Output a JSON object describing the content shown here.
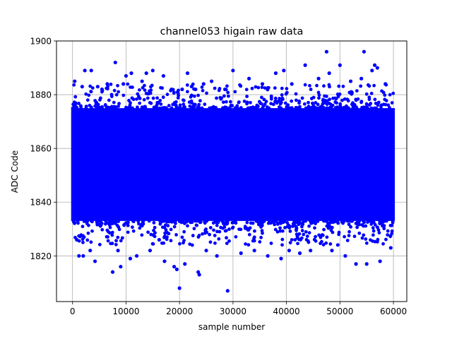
{
  "chart_data": {
    "type": "scatter",
    "title": "channel053 higain raw data",
    "xlabel": "sample number",
    "ylabel": "ADC Code",
    "xlim": [
      -3000,
      62500
    ],
    "ylim": [
      1803,
      1900
    ],
    "x_ticks": [
      0,
      10000,
      20000,
      30000,
      40000,
      50000,
      60000
    ],
    "x_tick_labels": [
      "0",
      "10000",
      "20000",
      "30000",
      "40000",
      "50000",
      "60000"
    ],
    "y_ticks": [
      1820,
      1840,
      1860,
      1880,
      1900
    ],
    "y_tick_labels": [
      "1820",
      "1840",
      "1860",
      "1880",
      "1900"
    ],
    "grid": true,
    "marker_color": "#0000ff",
    "dense_band": {
      "x_range": [
        0,
        60000
      ],
      "y_range": [
        1833,
        1875
      ]
    },
    "outliers": [
      {
        "x": 400,
        "y": 1885
      },
      {
        "x": 800,
        "y": 1826
      },
      {
        "x": 1200,
        "y": 1820
      },
      {
        "x": 1800,
        "y": 1883
      },
      {
        "x": 2000,
        "y": 1820
      },
      {
        "x": 2300,
        "y": 1889
      },
      {
        "x": 3300,
        "y": 1822
      },
      {
        "x": 3500,
        "y": 1889
      },
      {
        "x": 4200,
        "y": 1818
      },
      {
        "x": 4700,
        "y": 1883
      },
      {
        "x": 5500,
        "y": 1882
      },
      {
        "x": 6500,
        "y": 1884
      },
      {
        "x": 7500,
        "y": 1814
      },
      {
        "x": 8000,
        "y": 1892
      },
      {
        "x": 8500,
        "y": 1822
      },
      {
        "x": 9000,
        "y": 1816
      },
      {
        "x": 9500,
        "y": 1884
      },
      {
        "x": 10000,
        "y": 1887
      },
      {
        "x": 10800,
        "y": 1819
      },
      {
        "x": 11000,
        "y": 1888
      },
      {
        "x": 12000,
        "y": 1820
      },
      {
        "x": 13000,
        "y": 1885
      },
      {
        "x": 13800,
        "y": 1888
      },
      {
        "x": 14500,
        "y": 1822
      },
      {
        "x": 15000,
        "y": 1889
      },
      {
        "x": 16200,
        "y": 1826
      },
      {
        "x": 17000,
        "y": 1887
      },
      {
        "x": 17200,
        "y": 1818
      },
      {
        "x": 18500,
        "y": 1882
      },
      {
        "x": 19000,
        "y": 1816
      },
      {
        "x": 19500,
        "y": 1815
      },
      {
        "x": 20000,
        "y": 1808
      },
      {
        "x": 20500,
        "y": 1882
      },
      {
        "x": 21000,
        "y": 1817
      },
      {
        "x": 21500,
        "y": 1888
      },
      {
        "x": 23000,
        "y": 1882
      },
      {
        "x": 23500,
        "y": 1814
      },
      {
        "x": 23700,
        "y": 1813
      },
      {
        "x": 24500,
        "y": 1884
      },
      {
        "x": 25000,
        "y": 1822
      },
      {
        "x": 26000,
        "y": 1885
      },
      {
        "x": 27000,
        "y": 1820
      },
      {
        "x": 28500,
        "y": 1882
      },
      {
        "x": 29000,
        "y": 1807
      },
      {
        "x": 30000,
        "y": 1889
      },
      {
        "x": 31500,
        "y": 1821
      },
      {
        "x": 33000,
        "y": 1886
      },
      {
        "x": 34000,
        "y": 1822
      },
      {
        "x": 35500,
        "y": 1884
      },
      {
        "x": 36500,
        "y": 1820
      },
      {
        "x": 38000,
        "y": 1888
      },
      {
        "x": 39000,
        "y": 1819
      },
      {
        "x": 39500,
        "y": 1889
      },
      {
        "x": 40500,
        "y": 1822
      },
      {
        "x": 41000,
        "y": 1884
      },
      {
        "x": 42500,
        "y": 1821
      },
      {
        "x": 43500,
        "y": 1891
      },
      {
        "x": 44500,
        "y": 1822
      },
      {
        "x": 46000,
        "y": 1886
      },
      {
        "x": 47500,
        "y": 1896
      },
      {
        "x": 48000,
        "y": 1888
      },
      {
        "x": 48500,
        "y": 1822
      },
      {
        "x": 50000,
        "y": 1891
      },
      {
        "x": 51000,
        "y": 1820
      },
      {
        "x": 52000,
        "y": 1885
      },
      {
        "x": 53000,
        "y": 1817
      },
      {
        "x": 54000,
        "y": 1886
      },
      {
        "x": 54500,
        "y": 1896
      },
      {
        "x": 55000,
        "y": 1817
      },
      {
        "x": 56000,
        "y": 1889
      },
      {
        "x": 56500,
        "y": 1891
      },
      {
        "x": 57000,
        "y": 1890
      },
      {
        "x": 57500,
        "y": 1818
      },
      {
        "x": 58500,
        "y": 1884
      },
      {
        "x": 59500,
        "y": 1823
      }
    ]
  }
}
